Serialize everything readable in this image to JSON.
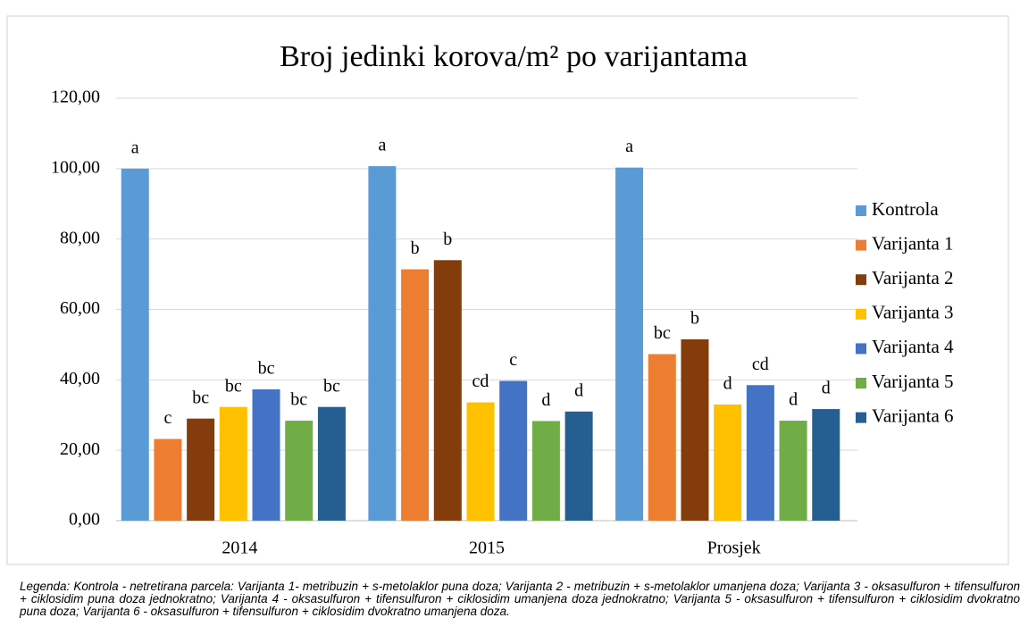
{
  "chart_data": {
    "type": "bar",
    "title": "Broj jedinki korova/m² po varijantama",
    "categories": [
      "2014",
      "2015",
      "Prosjek"
    ],
    "series": [
      {
        "name": "Kontrola",
        "color": "#5b9bd5",
        "values": [
          100,
          100.7,
          100.3
        ],
        "letters": [
          "a",
          "a",
          "a"
        ]
      },
      {
        "name": "Varijanta 1",
        "color": "#ed7d31",
        "values": [
          23.2,
          71.4,
          47.3
        ],
        "letters": [
          "c",
          "b",
          "bc"
        ]
      },
      {
        "name": "Varijanta 2",
        "color": "#843c0c",
        "values": [
          29,
          74,
          51.5
        ],
        "letters": [
          "bc",
          "b",
          "b"
        ]
      },
      {
        "name": "Varijanta 3",
        "color": "#ffc000",
        "values": [
          32.3,
          33.6,
          33
        ],
        "letters": [
          "bc",
          "cd",
          "d"
        ]
      },
      {
        "name": "Varijanta 4",
        "color": "#4472c4",
        "values": [
          37.3,
          39.7,
          38.5
        ],
        "letters": [
          "bc",
          "c",
          "cd"
        ]
      },
      {
        "name": "Varijanta 5",
        "color": "#70ad47",
        "values": [
          28.4,
          28.3,
          28.4
        ],
        "letters": [
          "bc",
          "d",
          "d"
        ]
      },
      {
        "name": "Varijanta 6",
        "color": "#255e91",
        "values": [
          32.3,
          31,
          31.7
        ],
        "letters": [
          "bc",
          "d",
          "d"
        ]
      }
    ],
    "ylim": [
      0,
      120
    ],
    "yticks": [
      {
        "value": 0,
        "label": "0,00"
      },
      {
        "value": 20,
        "label": "20,00"
      },
      {
        "value": 40,
        "label": "40,00"
      },
      {
        "value": 60,
        "label": "60,00"
      },
      {
        "value": 80,
        "label": "80,00"
      },
      {
        "value": 100,
        "label": "100,00"
      },
      {
        "value": 120,
        "label": "120,00"
      }
    ],
    "grid": true,
    "legend": "right",
    "caption": "Legenda: Kontrola - netretirana parcela: Varijanta 1- metribuzin + s-metolaklor puna doza; Varijanta 2 - metribuzin + s-metolaklor umanjena doza; Varijanta 3 - oksasulfuron + tifensulfuron + ciklosidim puna doza jednokratno; Varijanta 4 - oksasulfuron + tifensulfuron + ciklosidim umanjena doza jednokratno; Varijanta 5 - oksasulfuron + tifensulfuron + ciklosidim dvokratno puna doza; Varijanta 6 - oksasulfuron + tifensulfuron + ciklosidim dvokratno umanjena doza."
  }
}
